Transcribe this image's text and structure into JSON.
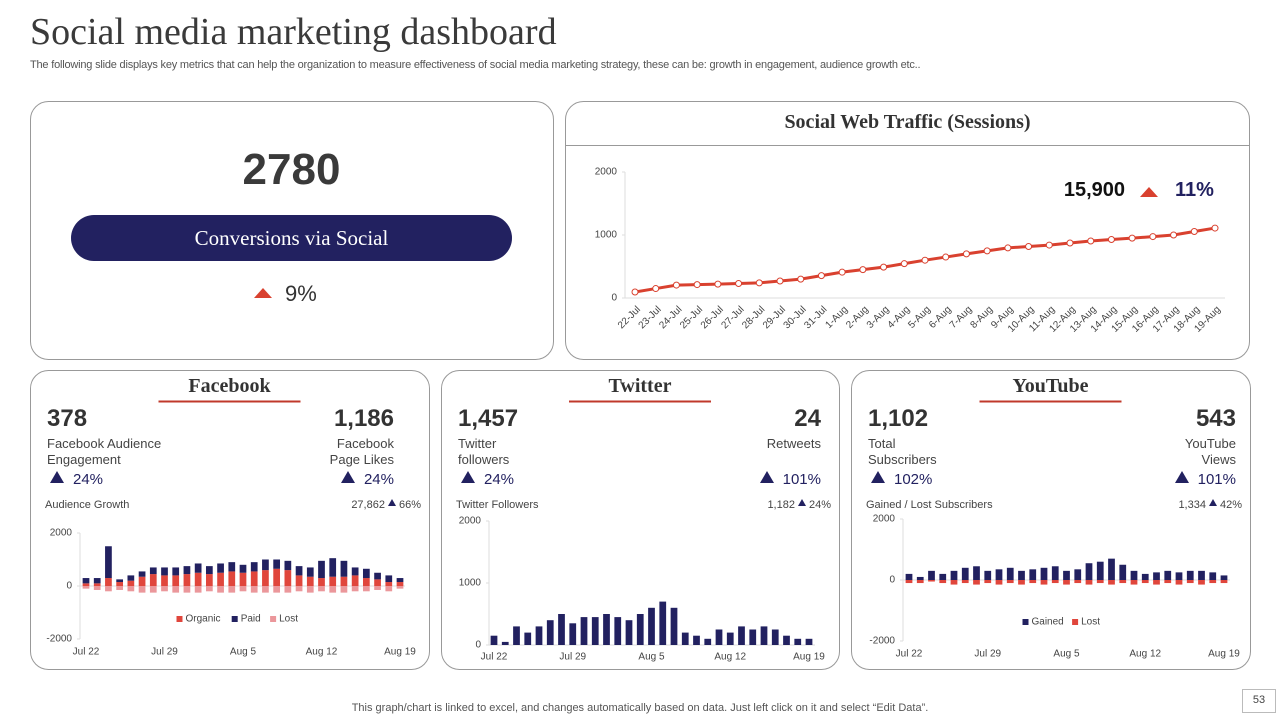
{
  "header": {
    "title": "Social media marketing dashboard",
    "subtitle": "The following slide displays key metrics that can help the organization to measure effectiveness of social media marketing strategy, these can be: growth in engagement, audience growth etc.."
  },
  "conversions": {
    "value": 2780,
    "label": "Conversions via Social",
    "change": "9%"
  },
  "cards": [
    {
      "title": "Facebook",
      "metrics": [
        {
          "value": "378",
          "label": "Facebook Audience Engagement",
          "change": "24%"
        },
        {
          "value": "1,186",
          "label": "Facebook Page Likes",
          "change": "24%"
        }
      ]
    },
    {
      "title": "Twitter",
      "metrics": [
        {
          "value": "1,457",
          "label": "Twitter followers",
          "change": "24%"
        },
        {
          "value": "24",
          "label": "Retweets",
          "change": "101%"
        }
      ]
    },
    {
      "title": "YouTube",
      "metrics": [
        {
          "value": "1,102",
          "label": "Total Subscribers",
          "change": "102%"
        },
        {
          "value": "543",
          "label": "YouTube Views",
          "change": "101%"
        }
      ]
    }
  ],
  "chart_data": [
    {
      "type": "line",
      "title": "Social Web Traffic (Sessions)",
      "annotations": [
        "15,900",
        "11%"
      ],
      "categories": [
        "22-Jul",
        "23-Jul",
        "24-Jul",
        "25-Jul",
        "26-Jul",
        "27-Jul",
        "28-Jul",
        "29-Jul",
        "30-Jul",
        "31-Jul",
        "1-Aug",
        "2-Aug",
        "3-Aug",
        "4-Aug",
        "5-Aug",
        "6-Aug",
        "7-Aug",
        "8-Aug",
        "9-Aug",
        "10-Aug",
        "11-Aug",
        "12-Aug",
        "13-Aug",
        "14-Aug",
        "15-Aug",
        "16-Aug",
        "17-Aug",
        "18-Aug",
        "19-Aug"
      ],
      "values": [
        95,
        150,
        205,
        213,
        220,
        230,
        240,
        270,
        300,
        355,
        410,
        450,
        490,
        545,
        600,
        650,
        700,
        748,
        795,
        818,
        840,
        873,
        905,
        928,
        950,
        975,
        1000,
        1055,
        1110
      ],
      "color": "#d9412f",
      "ylim": [
        0,
        2000
      ],
      "yticks": [
        0,
        1000,
        2000
      ]
    },
    {
      "type": "bar",
      "stacked": true,
      "title": "Audience Growth",
      "annotations": [
        "27,862",
        "66%"
      ],
      "categories": [
        "Jul 22",
        null,
        null,
        null,
        null,
        null,
        null,
        "Jul 29",
        null,
        null,
        null,
        null,
        null,
        null,
        "Aug 5",
        null,
        null,
        null,
        null,
        null,
        null,
        "Aug 12",
        null,
        null,
        null,
        null,
        null,
        null,
        "Aug 19"
      ],
      "series": [
        {
          "name": "Organic",
          "color": "#e0463c",
          "values": [
            100,
            100,
            300,
            150,
            200,
            350,
            450,
            400,
            400,
            450,
            500,
            450,
            500,
            550,
            500,
            550,
            600,
            650,
            600,
            400,
            350,
            300,
            350,
            350,
            400,
            300,
            250,
            150,
            150
          ]
        },
        {
          "name": "Paid",
          "color": "#222160",
          "values": [
            200,
            200,
            1200,
            100,
            200,
            200,
            250,
            300,
            300,
            300,
            350,
            300,
            350,
            350,
            300,
            350,
            400,
            350,
            350,
            350,
            350,
            650,
            700,
            600,
            300,
            350,
            250,
            250,
            150
          ]
        },
        {
          "name": "Lost",
          "color": "#eb979b",
          "values": [
            -100,
            -150,
            -200,
            -150,
            -200,
            -250,
            -250,
            -200,
            -250,
            -250,
            -250,
            -200,
            -250,
            -250,
            -200,
            -250,
            -250,
            -250,
            -250,
            -200,
            -250,
            -200,
            -250,
            -250,
            -200,
            -200,
            -150,
            -200,
            -100
          ]
        }
      ],
      "ylim": [
        -2000,
        2000
      ],
      "yticks": [
        -2000,
        0,
        2000
      ],
      "legend": "bottom"
    },
    {
      "type": "bar",
      "title": "Twitter Followers",
      "annotations": [
        "1,182",
        "24%"
      ],
      "categories": [
        "Jul 22",
        null,
        null,
        null,
        null,
        null,
        null,
        "Jul 29",
        null,
        null,
        null,
        null,
        null,
        null,
        "Aug 5",
        null,
        null,
        null,
        null,
        null,
        null,
        "Aug 12",
        null,
        null,
        null,
        null,
        null,
        null,
        "Aug 19"
      ],
      "values": [
        150,
        50,
        300,
        200,
        300,
        400,
        500,
        350,
        450,
        450,
        500,
        450,
        400,
        500,
        600,
        700,
        600,
        200,
        150,
        100,
        250,
        200,
        300,
        250,
        300,
        250,
        150,
        100,
        100
      ],
      "color": "#222160",
      "ylim": [
        0,
        2000
      ],
      "yticks": [
        0,
        1000,
        2000
      ]
    },
    {
      "type": "bar",
      "stacked": true,
      "title": "Gained / Lost Subscribers",
      "annotations": [
        "1,334",
        "42%"
      ],
      "categories": [
        "Jul 22",
        null,
        null,
        null,
        null,
        null,
        null,
        "Jul 29",
        null,
        null,
        null,
        null,
        null,
        null,
        "Aug 5",
        null,
        null,
        null,
        null,
        null,
        null,
        "Aug 12",
        null,
        null,
        null,
        null,
        null,
        null,
        "Aug 19"
      ],
      "series": [
        {
          "name": "Gained",
          "color": "#222160",
          "values": [
            200,
            100,
            300,
            200,
            300,
            400,
            450,
            300,
            350,
            400,
            300,
            350,
            400,
            450,
            300,
            350,
            550,
            600,
            700,
            500,
            300,
            200,
            250,
            300,
            250,
            300,
            300,
            250,
            150
          ]
        },
        {
          "name": "Lost",
          "color": "#e0463c",
          "values": [
            -100,
            -100,
            -50,
            -100,
            -150,
            -100,
            -150,
            -100,
            -150,
            -100,
            -150,
            -100,
            -150,
            -100,
            -150,
            -100,
            -150,
            -100,
            -150,
            -100,
            -150,
            -100,
            -150,
            -100,
            -150,
            -100,
            -150,
            -100,
            -100
          ]
        }
      ],
      "ylim": [
        -2000,
        2000
      ],
      "yticks": [
        -2000,
        0,
        2000
      ],
      "legend": "bottom"
    }
  ],
  "footer": "This graph/chart is linked to excel,  and changes automatically based on data. Just left click on it and select “Edit Data”.",
  "page_number": "53"
}
